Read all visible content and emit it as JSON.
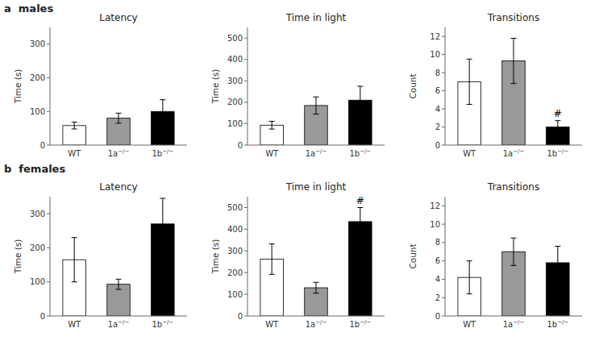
{
  "annotations": [
    "a  males",
    "b  females"
  ],
  "chart_data": [
    {
      "type": "bar",
      "title": "Latency",
      "ylabel": "Time (s)",
      "categories": [
        "WT",
        "1a−/−",
        "1b−/−"
      ],
      "values": [
        58,
        80,
        100
      ],
      "errors": [
        10,
        15,
        35
      ],
      "colors": [
        "white",
        "#999999",
        "black"
      ],
      "ylim": [
        0,
        350
      ],
      "yticks": [
        0,
        100,
        200,
        300
      ],
      "grid": false
    },
    {
      "type": "bar",
      "title": "Time in light",
      "ylabel": "Time (s)",
      "categories": [
        "WT",
        "1a−/−",
        "1b−/−"
      ],
      "values": [
        93,
        185,
        210
      ],
      "errors": [
        18,
        40,
        65
      ],
      "colors": [
        "white",
        "#999999",
        "black"
      ],
      "ylim": [
        0,
        550
      ],
      "yticks": [
        0,
        100,
        200,
        300,
        400,
        500
      ],
      "grid": false
    },
    {
      "type": "bar",
      "title": "Transitions",
      "ylabel": "Count",
      "categories": [
        "WT",
        "1a−/−",
        "1b−/−"
      ],
      "values": [
        7.0,
        9.3,
        2.0
      ],
      "errors": [
        2.5,
        2.5,
        0.7
      ],
      "colors": [
        "white",
        "#999999",
        "black"
      ],
      "ylim": [
        0,
        13
      ],
      "yticks": [
        0,
        2,
        4,
        6,
        8,
        10,
        12
      ],
      "grid": false,
      "annotations": [
        {
          "text": "#",
          "category": "1b−/−"
        }
      ]
    },
    {
      "type": "bar",
      "title": "Latency",
      "ylabel": "Time (s)",
      "categories": [
        "WT",
        "1a−/−",
        "1b−/−"
      ],
      "values": [
        165,
        93,
        270
      ],
      "errors": [
        65,
        15,
        75
      ],
      "colors": [
        "white",
        "#999999",
        "black"
      ],
      "ylim": [
        0,
        350
      ],
      "yticks": [
        0,
        100,
        200,
        300
      ],
      "grid": false
    },
    {
      "type": "bar",
      "title": "Time in light",
      "ylabel": "Time (s)",
      "categories": [
        "WT",
        "1a−/−",
        "1b−/−"
      ],
      "values": [
        262,
        130,
        435
      ],
      "errors": [
        70,
        25,
        65
      ],
      "colors": [
        "white",
        "#999999",
        "black"
      ],
      "ylim": [
        0,
        550
      ],
      "yticks": [
        0,
        100,
        200,
        300,
        400,
        500
      ],
      "grid": false,
      "annotations": [
        {
          "text": "#",
          "category": "1b−/−"
        }
      ]
    },
    {
      "type": "bar",
      "title": "Transitions",
      "ylabel": "Count",
      "categories": [
        "WT",
        "1a−/−",
        "1b−/−"
      ],
      "values": [
        4.2,
        7.0,
        5.8
      ],
      "errors": [
        1.8,
        1.5,
        1.8
      ],
      "colors": [
        "white",
        "#999999",
        "black"
      ],
      "ylim": [
        0,
        13
      ],
      "yticks": [
        0,
        2,
        4,
        6,
        8,
        10,
        12
      ],
      "grid": false
    }
  ]
}
